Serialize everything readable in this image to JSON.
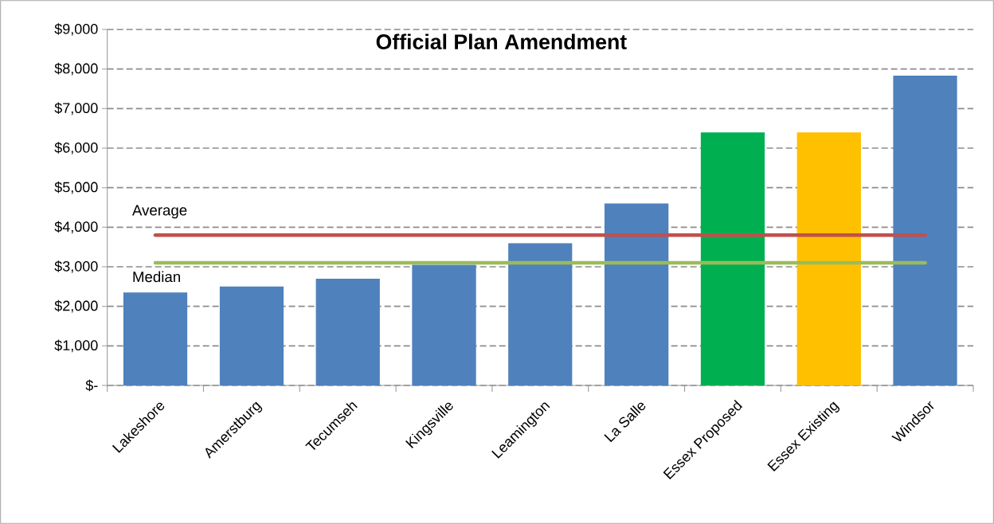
{
  "chart_data": {
    "type": "bar",
    "title": "Official Plan Amendment",
    "categories": [
      "Lakeshore",
      "Amerstburg",
      "Tecumseh",
      "Kingsville",
      "Leamington",
      "La Salle",
      "Essex Proposed",
      "Essex Existing",
      "Windsor"
    ],
    "values": [
      2350,
      2500,
      2700,
      3050,
      3600,
      4600,
      6400,
      6400,
      7830
    ],
    "colors": [
      "#4f81bd",
      "#4f81bd",
      "#4f81bd",
      "#4f81bd",
      "#4f81bd",
      "#4f81bd",
      "#00b050",
      "#ffc000",
      "#4f81bd"
    ],
    "ylim": [
      0,
      9000
    ],
    "yticks": [
      {
        "value": 0,
        "label": "$-"
      },
      {
        "value": 1000,
        "label": "$1,000"
      },
      {
        "value": 2000,
        "label": "$2,000"
      },
      {
        "value": 3000,
        "label": "$3,000"
      },
      {
        "value": 4000,
        "label": "$4,000"
      },
      {
        "value": 5000,
        "label": "$5,000"
      },
      {
        "value": 6000,
        "label": "$6,000"
      },
      {
        "value": 7000,
        "label": "$7,000"
      },
      {
        "value": 8000,
        "label": "$8,000"
      },
      {
        "value": 9000,
        "label": "$9,000"
      }
    ],
    "grid": "y",
    "ref_lines": [
      {
        "axis": "y",
        "value": 3800,
        "label": "Average",
        "color": "#c0504d"
      },
      {
        "axis": "y",
        "value": 3100,
        "label": "Median",
        "color": "#9bbb59"
      }
    ]
  }
}
